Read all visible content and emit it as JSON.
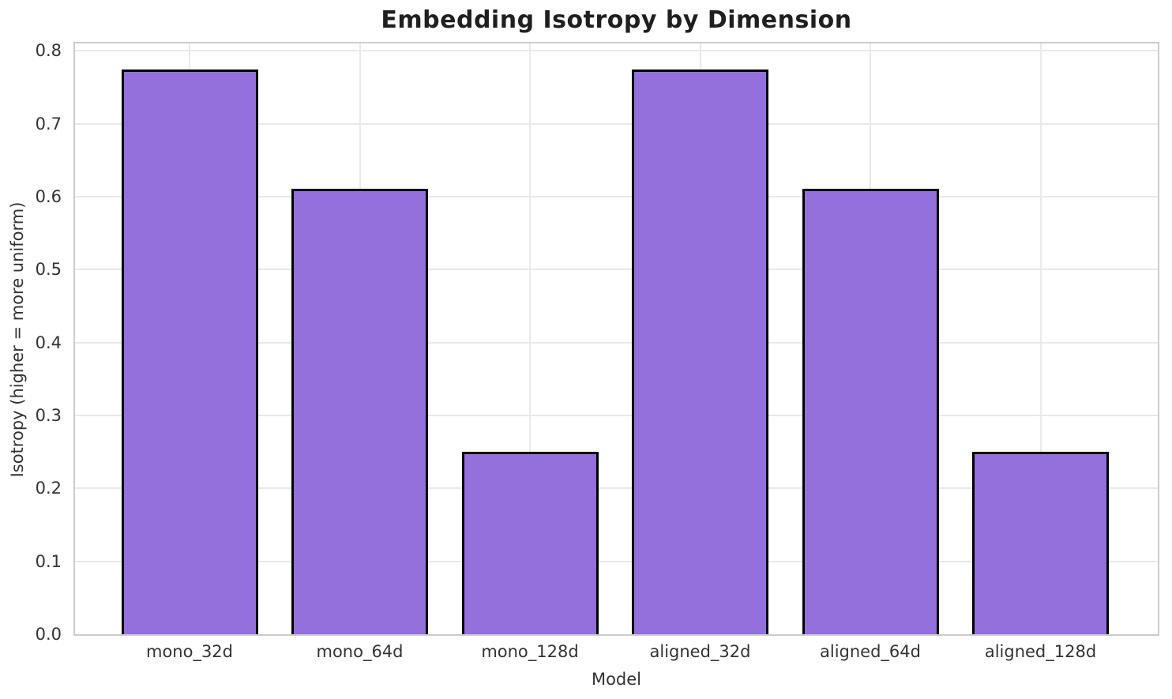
{
  "chart_data": {
    "type": "bar",
    "title": "Embedding Isotropy by Dimension",
    "xlabel": "Model",
    "ylabel": "Isotropy (higher = more uniform)",
    "categories": [
      "mono_32d",
      "mono_64d",
      "mono_128d",
      "aligned_32d",
      "aligned_64d",
      "aligned_128d"
    ],
    "values": [
      0.774,
      0.611,
      0.25,
      0.774,
      0.611,
      0.25
    ],
    "ylim": [
      0,
      0.81
    ],
    "yticks": [
      0.0,
      0.1,
      0.2,
      0.3,
      0.4,
      0.5,
      0.6,
      0.7,
      0.8
    ],
    "ytick_labels": [
      "0.0",
      "0.1",
      "0.2",
      "0.3",
      "0.4",
      "0.5",
      "0.6",
      "0.7",
      "0.8"
    ],
    "grid": true,
    "legend_position": "none",
    "colors": {
      "bar_fill": "#9370DB",
      "bar_edge": "#000000",
      "grid_line": "#e9e9e9",
      "spine": "#cccccc",
      "text": "#333333",
      "title_text": "#1f1f1f"
    }
  }
}
